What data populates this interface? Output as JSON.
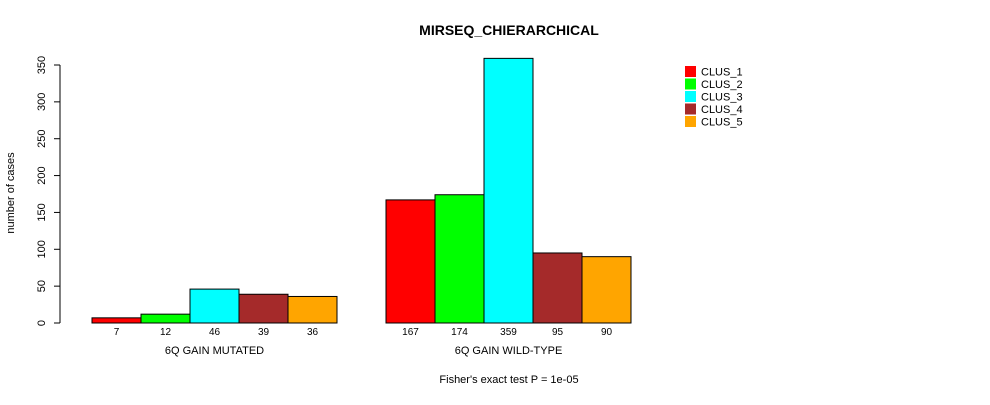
{
  "chart_data": {
    "type": "bar",
    "title": "MIRSEQ_CHIERARCHICAL",
    "ylabel": "number of cases",
    "xlabel": "",
    "ylim": [
      0,
      350
    ],
    "yticks": [
      0,
      50,
      100,
      150,
      200,
      250,
      300,
      350
    ],
    "categories": [
      "6Q GAIN MUTATED",
      "6Q GAIN WILD-TYPE"
    ],
    "series": [
      {
        "name": "CLUS_1",
        "color": "#ff0000",
        "values": [
          7,
          167
        ]
      },
      {
        "name": "CLUS_2",
        "color": "#00ff00",
        "values": [
          12,
          174
        ]
      },
      {
        "name": "CLUS_3",
        "color": "#00ffff",
        "values": [
          46,
          359
        ]
      },
      {
        "name": "CLUS_4",
        "color": "#a52a2a",
        "values": [
          39,
          95
        ]
      },
      {
        "name": "CLUS_5",
        "color": "#ffa500",
        "values": [
          36,
          90
        ]
      }
    ],
    "legend_position": "top-right",
    "grid": false,
    "footnote": "Fisher's exact test P = 1e-05"
  }
}
